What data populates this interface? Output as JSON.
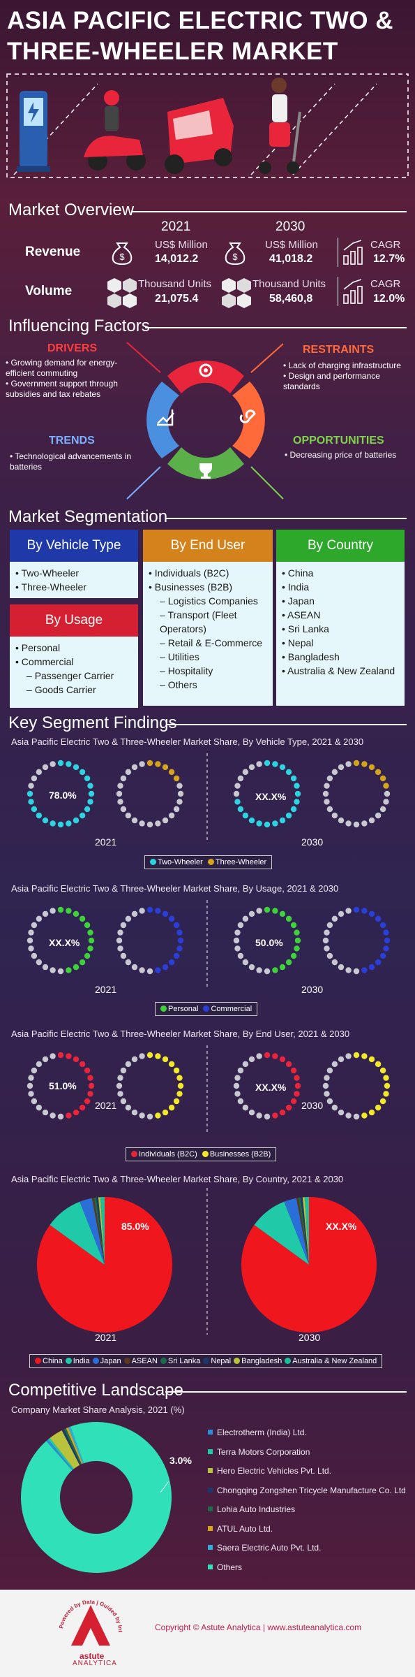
{
  "header": {
    "title_line1": "ASIA PACIFIC ELECTRIC TWO &",
    "title_line2": "THREE-WHEELER MARKET"
  },
  "overview": {
    "title": "Market Overview",
    "year_a": "2021",
    "year_b": "2030",
    "revenue": {
      "label": "Revenue",
      "unit_a": "US$ Million",
      "value_a": "14,012.2",
      "unit_b": "US$ Million",
      "value_b": "41,018.2",
      "cagr_label": "CAGR",
      "cagr": "12.7%"
    },
    "volume": {
      "label": "Volume",
      "unit_a": "Thousand Units",
      "value_a": "21,075.4",
      "unit_b": "Thousand Units",
      "value_b": "58,460,8",
      "cagr_label": "CAGR",
      "cagr": "12.0%"
    }
  },
  "factors": {
    "title": "Influencing Factors",
    "drivers": {
      "title": "DRIVERS",
      "items": [
        "Growing demand for energy-efficient commuting",
        "Government support through subsidies and tax rebates"
      ]
    },
    "restraints": {
      "title": "RESTRAINTS",
      "items": [
        "Lack of charging infrastructure",
        "Design and performance standards"
      ]
    },
    "trends": {
      "title": "TRENDS",
      "items": [
        "Technological advancements in batteries"
      ]
    },
    "opportunities": {
      "title": "OPPORTUNITIES",
      "items": [
        "Decreasing price of batteries"
      ]
    }
  },
  "segmentation": {
    "title": "Market Segmentation",
    "vehicle": {
      "title": "By Vehicle Type",
      "items": [
        "Two-Wheeler",
        "Three-Wheeler"
      ]
    },
    "usage": {
      "title": "By Usage",
      "items": [
        "Personal",
        "Commercial"
      ],
      "sub": [
        "Passenger Carrier",
        "Goods Carrier"
      ]
    },
    "end_user": {
      "title": "By End User",
      "items": [
        "Individuals (B2C)",
        "Businesses (B2B)"
      ],
      "sub": [
        "Logistics Companies",
        "Transport (Fleet Operators)",
        "Retail & E-Commerce",
        "Utilities",
        "Hospitality",
        "Others"
      ]
    },
    "country": {
      "title": "By Country",
      "items": [
        "China",
        "India",
        "Japan",
        "ASEAN",
        "Sri Lanka",
        "Nepal",
        "Bangladesh",
        "Australia & New Zealand"
      ]
    }
  },
  "findings": {
    "title": "Key Segment Findings",
    "vehicle": {
      "title": "Asia Pacific Electric Two & Three-Wheeler Market Share, By Vehicle Type, 2021 & 2030",
      "label_2021": "78.0%",
      "label_2030": "XX.X%",
      "legend": [
        "Two-Wheeler",
        "Three-Wheeler"
      ]
    },
    "usage": {
      "title": "Asia Pacific Electric Two & Three-Wheeler Market Share, By Usage, 2021 & 2030",
      "label_2021": "XX.X%",
      "label_2030": "50.0%",
      "legend": [
        "Personal",
        "Commercial"
      ]
    },
    "end_user": {
      "title": "Asia Pacific Electric Two & Three-Wheeler Market Share, By End User, 2021 & 2030",
      "label_2021": "51.0%",
      "label_2030": "XX.X%",
      "legend": [
        "Individuals (B2C)",
        "Businesses (B2B)"
      ]
    },
    "country": {
      "title": "Asia Pacific Electric Two & Three-Wheeler Market Share, By Country, 2021 & 2030",
      "label_2021": "85.0%",
      "label_2030": "XX.X%",
      "legend": [
        "China",
        "India",
        "Japan",
        "ASEAN",
        "Sri Lanka",
        "Nepal",
        "Bangladesh",
        "Australia & New Zealand"
      ]
    },
    "year_a": "2021",
    "year_b": "2030"
  },
  "colors": {
    "cyan": "#2ed3e0",
    "yellow_dark": "#d4a51c",
    "green": "#3ed13a",
    "blue": "#2a3fd8",
    "red": "#e8253a",
    "yellow": "#f2e82a",
    "grey": "#c8c8d0",
    "china": "#f0161e",
    "india": "#20c9a8",
    "japan": "#2a6fd8",
    "asean": "#5a3a1a",
    "srilanka": "#1b6b4a",
    "nepal": "#1a3a6a",
    "bangladesh": "#b8c23a",
    "anz": "#1fbf9a"
  },
  "chart_data": [
    {
      "type": "pie",
      "title": "Asia Pacific Electric Two & Three-Wheeler Market Share, By Vehicle Type, 2021 & 2030",
      "categories": [
        "Two-Wheeler",
        "Three-Wheeler"
      ],
      "series": [
        {
          "name": "2021",
          "values": [
            78.0,
            22.0
          ]
        }
      ]
    },
    {
      "type": "pie",
      "title": "Asia Pacific Electric Two & Three-Wheeler Market Share, By Usage, 2021 & 2030",
      "categories": [
        "Personal",
        "Commercial"
      ],
      "series": [
        {
          "name": "2030",
          "values": [
            50.0,
            50.0
          ]
        }
      ]
    },
    {
      "type": "pie",
      "title": "Asia Pacific Electric Two & Three-Wheeler Market Share, By End User, 2021 & 2030",
      "categories": [
        "Individuals (B2C)",
        "Businesses (B2B)"
      ],
      "series": [
        {
          "name": "2021",
          "values": [
            51.0,
            49.0
          ]
        }
      ]
    },
    {
      "type": "pie",
      "title": "Asia Pacific Electric Two & Three-Wheeler Market Share, By Country, 2021 & 2030",
      "categories": [
        "China",
        "India",
        "Japan",
        "ASEAN",
        "Sri Lanka",
        "Nepal",
        "Bangladesh",
        "Australia & New Zealand"
      ],
      "series": [
        {
          "name": "2021",
          "values": [
            85.0,
            9.0,
            3.0,
            0.5,
            0.5,
            0.5,
            0.5,
            1.0
          ]
        }
      ]
    },
    {
      "type": "pie",
      "title": "Company Market Share Analysis, 2021 (%)",
      "categories": [
        "Electrotherm (India) Ltd.",
        "Terra Motors Corporation",
        "Hero Electric Vehicles Pvt. Ltd.",
        "Chongqing Zongshen Tricycle Manufacture Co. Ltd",
        "Lohia Auto Industries",
        "ATUL Auto Ltd.",
        "Saera Electric Auto Pvt. Ltd.",
        "Others"
      ],
      "series": [
        {
          "name": "2021",
          "values": [
            0.5,
            0.5,
            3.0,
            0.5,
            0.5,
            0.5,
            0.5,
            94.0
          ]
        }
      ]
    }
  ],
  "competitive": {
    "title": "Competitive Landscape",
    "subtitle": "Company Market Share Analysis, 2021 (%)",
    "callout": "3.0%",
    "companies": [
      "Electrotherm (India) Ltd.",
      "Terra Motors Corporation",
      "Hero Electric Vehicles Pvt. Ltd.",
      "Chongqing Zongshen Tricycle Manufacture Co. Ltd",
      "Lohia Auto Industries",
      "ATUL Auto Ltd.",
      "Saera Electric Auto Pvt. Ltd.",
      "Others"
    ],
    "company_colors": [
      "#2a8fd8",
      "#20c9a8",
      "#b8c23a",
      "#1a3a6a",
      "#1b6b4a",
      "#d4a51c",
      "#2ab0e0",
      "#2fe0b8"
    ]
  },
  "footer": {
    "brand": "astute",
    "brand2": "ANALYTICA",
    "ring_text": "Powered by Data | Guided by Intelligence",
    "copyright": "Copyright © Astute Analytica  |  www.astuteanalytica.com"
  }
}
